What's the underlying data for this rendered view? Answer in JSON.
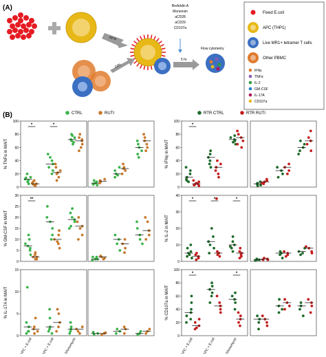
{
  "figure": {
    "panel_a_label": "(A)",
    "panel_b_label": "(B)",
    "schema": {
      "arrow1_time": "18 hr",
      "arrow2_time": "O/N",
      "arrow3_time": "5 hr",
      "treatments": [
        "Brefeldin A",
        "Monensin",
        "aCD28",
        "aCD29",
        "CD107a"
      ],
      "flow_label": "Flow cytometry",
      "legend": [
        {
          "label": "Fixed E.coli",
          "color": "#e51b23",
          "icon": "red-dot-icon"
        },
        {
          "label": "APC (THP1)",
          "color": "#e8b816",
          "icon": "apc-cell-icon"
        },
        {
          "label": "Live MR1+ tetramer T cells",
          "color": "#3b6fc2",
          "icon": "t-cell-icon"
        },
        {
          "label": "Other PBMC",
          "color": "#e07b2e",
          "icon": "pbmc-icon"
        },
        {
          "label": "IFNγ",
          "color": "#e07b2e",
          "icon": "dot-icon"
        },
        {
          "label": "TNFα",
          "color": "#8a5bb5",
          "icon": "dot-icon"
        },
        {
          "label": "IL-2",
          "color": "#2e9e3e",
          "icon": "dot-icon"
        },
        {
          "label": "GM-CSF",
          "color": "#1f7fd0",
          "icon": "dot-icon"
        },
        {
          "label": "IL-17A",
          "color": "#b0125a",
          "icon": "dot-icon"
        },
        {
          "label": "CD107a",
          "color": "#e8b816",
          "icon": "dot-icon"
        }
      ]
    },
    "legend_left": [
      {
        "label": "CTRL",
        "color": "#3cb44b"
      },
      {
        "label": "RUTI",
        "color": "#c7782a"
      }
    ],
    "legend_right": [
      {
        "label": "RTR CTRL",
        "color": "#1e6b2a"
      },
      {
        "label": "RTR RUTI",
        "color": "#c41e1e"
      }
    ],
    "x_categories": [
      "10⁴ APC + E.coli",
      "10⁵ APC + E.coli",
      "PMA/Ionomycin"
    ],
    "significance": [
      "*",
      "**"
    ]
  },
  "chart_data": [
    {
      "type": "scatter",
      "ylabel": "% TNFα in MAIT",
      "ylim": [
        0,
        100
      ],
      "yticks": [
        0,
        20,
        40,
        60,
        80,
        100
      ],
      "series": [
        {
          "name": "CTRL",
          "groups": [
            [
              15,
              12,
              10,
              20,
              8,
              5,
              14
            ],
            [
              30,
              45,
              25,
              40,
              50,
              35,
              20
            ],
            [
              70,
              75,
              80,
              65,
              72,
              68,
              78
            ]
          ]
        },
        {
          "name": "RUTI",
          "groups": [
            [
              5,
              3,
              8,
              10,
              2,
              6,
              4
            ],
            [
              20,
              25,
              15,
              30,
              10,
              35,
              22
            ],
            [
              65,
              70,
              75,
              60,
              80,
              72,
              55
            ]
          ]
        }
      ],
      "sig": [
        [
          "CTRL0",
          "RUTI0",
          "*"
        ],
        [
          "CTRL1",
          "RUTI1",
          "*"
        ]
      ]
    },
    {
      "type": "scatter",
      "ylim": [
        0,
        100
      ],
      "series": [
        {
          "name": "CTRL",
          "groups": [
            [
              5,
              8,
              3,
              10,
              6,
              4
            ],
            [
              15,
              20,
              25,
              30,
              18
            ],
            [
              45,
              55,
              60,
              50,
              65,
              70
            ]
          ]
        },
        {
          "name": "RUTI",
          "groups": [
            [
              8,
              10,
              12,
              6,
              9
            ],
            [
              20,
              25,
              35,
              30,
              28
            ],
            [
              55,
              65,
              70,
              80,
              75,
              60
            ]
          ]
        }
      ]
    },
    {
      "type": "scatter",
      "ylabel": "% IFNγ in MAIT",
      "ylim": [
        0,
        100
      ],
      "yticks": [
        0,
        20,
        40,
        60,
        80,
        100
      ],
      "series": [
        {
          "name": "RTR CTRL",
          "groups": [
            [
              10,
              20,
              15,
              30,
              25,
              8,
              12
            ],
            [
              35,
              45,
              50,
              30,
              40,
              55
            ],
            [
              65,
              70,
              75,
              68,
              72,
              78
            ]
          ]
        },
        {
          "name": "RTR RUTI",
          "groups": [
            [
              5,
              8,
              3,
              10,
              6,
              4,
              2
            ],
            [
              25,
              30,
              20,
              35,
              40,
              15
            ],
            [
              60,
              70,
              80,
              75,
              65,
              85
            ]
          ]
        }
      ],
      "sig": [
        [
          "RTR CTRL0",
          "RTR RUTI0",
          "*"
        ]
      ]
    },
    {
      "type": "scatter",
      "ylim": [
        0,
        100
      ],
      "series": [
        {
          "name": "RTR CTRL",
          "groups": [
            [
              2,
              4,
              6,
              8,
              5,
              3
            ],
            [
              15,
              25,
              20,
              30
            ],
            [
              50,
              60,
              70,
              55,
              65
            ]
          ]
        },
        {
          "name": "RTR RUTI",
          "groups": [
            [
              5,
              8,
              10,
              12,
              6
            ],
            [
              20,
              25,
              30,
              35
            ],
            [
              55,
              65,
              75,
              85,
              70
            ]
          ]
        }
      ]
    },
    {
      "type": "scatter",
      "ylabel": "% GM-CSF in MAIT",
      "ylim": [
        0,
        30
      ],
      "yticks": [
        0,
        5,
        10,
        15,
        20,
        25,
        30
      ],
      "series": [
        {
          "name": "CTRL",
          "groups": [
            [
              6,
              8,
              10,
              5,
              3,
              12,
              7
            ],
            [
              15,
              20,
              25,
              10,
              18,
              12
            ],
            [
              18,
              20,
              22,
              16,
              19,
              24,
              15
            ]
          ]
        },
        {
          "name": "RUTI",
          "groups": [
            [
              1,
              2,
              3,
              1,
              2,
              4
            ],
            [
              8,
              10,
              12,
              6,
              14,
              9
            ],
            [
              15,
              18,
              20,
              12,
              10,
              16
            ]
          ]
        }
      ],
      "sig": [
        [
          "CTRL0",
          "RUTI0",
          "**"
        ]
      ]
    },
    {
      "type": "scatter",
      "ylim": [
        0,
        30
      ],
      "series": [
        {
          "name": "CTRL",
          "groups": [
            [
              1,
              2,
              1,
              0.5,
              2
            ],
            [
              5,
              10,
              8,
              12
            ],
            [
              10,
              15,
              12,
              18,
              8
            ]
          ]
        },
        {
          "name": "RUTI",
          "groups": [
            [
              1,
              2,
              1.5,
              2.5
            ],
            [
              4,
              6,
              8,
              10
            ],
            [
              10,
              14,
              18,
              20,
              12
            ]
          ]
        }
      ]
    },
    {
      "type": "scatter",
      "ylabel": "% IL-2 in MAIT",
      "ylim": [
        0,
        40
      ],
      "yticks": [
        0,
        10,
        20,
        30,
        40
      ],
      "series": [
        {
          "name": "RTR CTRL",
          "groups": [
            [
              2,
              5,
              8,
              3,
              6,
              10,
              4
            ],
            [
              5,
              8,
              12,
              15,
              10,
              20
            ],
            [
              6,
              8,
              10,
              12,
              15,
              9
            ]
          ]
        },
        {
          "name": "RTR RUTI",
          "groups": [
            [
              1,
              3,
              4,
              2,
              5
            ],
            [
              3,
              4,
              6,
              5,
              38
            ],
            [
              2,
              4,
              6,
              3,
              5,
              8
            ]
          ]
        }
      ],
      "sig": [
        [
          "RTR CTRL0",
          "RTR RUTI0",
          "*"
        ],
        [
          "RTR CTRL1",
          "RTR RUTI1",
          "*"
        ],
        [
          "RTR CTRL2",
          "RTR RUTI2",
          "*"
        ]
      ]
    },
    {
      "type": "scatter",
      "ylim": [
        0,
        40
      ],
      "series": [
        {
          "name": "RTR CTRL",
          "groups": [
            [
              0.5,
              1,
              1.5,
              1
            ],
            [
              2,
              4,
              6,
              5
            ],
            [
              4,
              5,
              6,
              8
            ]
          ]
        },
        {
          "name": "RTR RUTI",
          "groups": [
            [
              1,
              1.5,
              2,
              1
            ],
            [
              3,
              4,
              6,
              5
            ],
            [
              5,
              6,
              8,
              9
            ]
          ]
        }
      ]
    },
    {
      "type": "scatter",
      "ylabel": "% IL-17A in MAIT",
      "ylim": [
        0,
        15
      ],
      "yticks": [
        0,
        5,
        10,
        15
      ],
      "series": [
        {
          "name": "CTRL",
          "groups": [
            [
              0.5,
              1,
              2,
              11,
              3,
              1
            ],
            [
              1,
              2,
              4,
              6,
              0.5,
              1.5
            ],
            [
              1,
              2,
              0.5,
              1.5,
              3
            ]
          ]
        },
        {
          "name": "RUTI",
          "groups": [
            [
              0.5,
              1,
              4,
              2,
              1.5
            ],
            [
              1,
              2,
              6,
              3,
              5
            ],
            [
              0.5,
              1,
              2,
              1.5
            ]
          ]
        }
      ]
    },
    {
      "type": "scatter",
      "ylim": [
        0,
        15
      ],
      "series": [
        {
          "name": "CTRL",
          "groups": [
            [
              0.3,
              0.5,
              0.8
            ],
            [
              0.5,
              1,
              1.5
            ],
            [
              0.5,
              1,
              0.3
            ]
          ]
        },
        {
          "name": "RUTI",
          "groups": [
            [
              0.2,
              0.5,
              0.7
            ],
            [
              0.5,
              1.5,
              2
            ],
            [
              0.5,
              1,
              1.5
            ]
          ]
        }
      ]
    },
    {
      "type": "scatter",
      "ylabel": "% CD107a in MAIT",
      "ylim": [
        0,
        100
      ],
      "yticks": [
        0,
        20,
        40,
        60,
        80,
        100
      ],
      "series": [
        {
          "name": "RTR CTRL",
          "groups": [
            [
              20,
              30,
              40,
              50,
              35,
              60,
              25
            ],
            [
              50,
              60,
              70,
              65,
              75,
              80
            ],
            [
              40,
              50,
              60,
              55,
              65
            ]
          ]
        },
        {
          "name": "RTR RUTI",
          "groups": [
            [
              10,
              15,
              20,
              25,
              12
            ],
            [
              35,
              40,
              50,
              60,
              45
            ],
            [
              15,
              25,
              30,
              35,
              20
            ]
          ]
        }
      ],
      "sig": [
        [
          "RTR CTRL0",
          "RTR RUTI0",
          "*"
        ],
        [
          "RTR CTRL2",
          "RTR RUTI2",
          "*"
        ]
      ]
    },
    {
      "type": "scatter",
      "ylim": [
        0,
        100
      ],
      "series": [
        {
          "name": "RTR CTRL",
          "groups": [
            [
              10,
              20,
              30,
              25
            ],
            [
              35,
              45,
              55,
              40
            ],
            [
              30,
              40,
              50,
              45
            ]
          ]
        },
        {
          "name": "RTR RUTI",
          "groups": [
            [
              15,
              25,
              30,
              20
            ],
            [
              40,
              50,
              55,
              45
            ],
            [
              35,
              45,
              55,
              50
            ]
          ]
        }
      ]
    }
  ]
}
